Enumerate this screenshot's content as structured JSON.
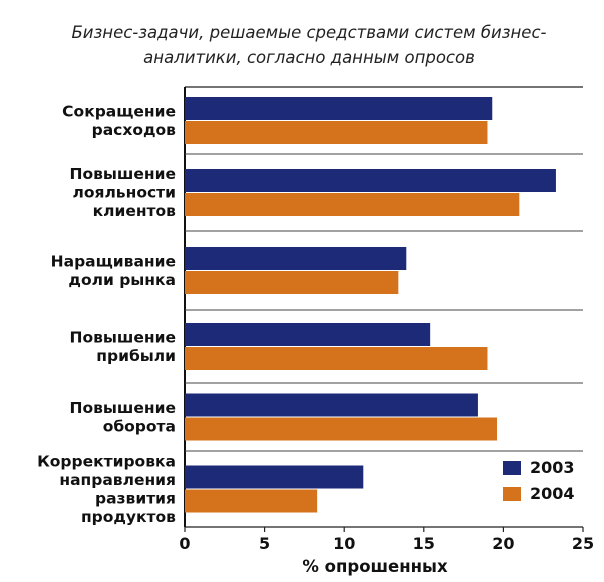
{
  "chart_data": {
    "type": "bar",
    "orientation": "horizontal",
    "title": [
      "Бизнес-задачи, решаемые средствами систем бизнес-",
      "аналитики, согласно данным опросов"
    ],
    "categories": [
      [
        "Сокращение",
        "расходов"
      ],
      [
        "Повышение",
        "лояльности",
        "клиентов"
      ],
      [
        "Наращивание",
        "доли рынка"
      ],
      [
        "Повышение",
        "прибыли"
      ],
      [
        "Повышение",
        "оборота"
      ],
      [
        "Корректировка",
        "направления",
        "развития",
        "продуктов"
      ]
    ],
    "series": [
      {
        "name": "2003",
        "color": "#1c2a78",
        "values": [
          19.3,
          23.3,
          13.9,
          15.4,
          18.4,
          11.2
        ]
      },
      {
        "name": "2004",
        "color": "#d4731c",
        "values": [
          19.0,
          21.0,
          13.4,
          19.0,
          19.6,
          8.3
        ]
      }
    ],
    "xlim": [
      0,
      25
    ],
    "xticks": [
      "0",
      "5",
      "10",
      "15",
      "20",
      "25"
    ],
    "xlabel": "% опрошенных",
    "ylabel": "",
    "legend": {
      "placement": "bottom-right"
    },
    "grid": false
  }
}
